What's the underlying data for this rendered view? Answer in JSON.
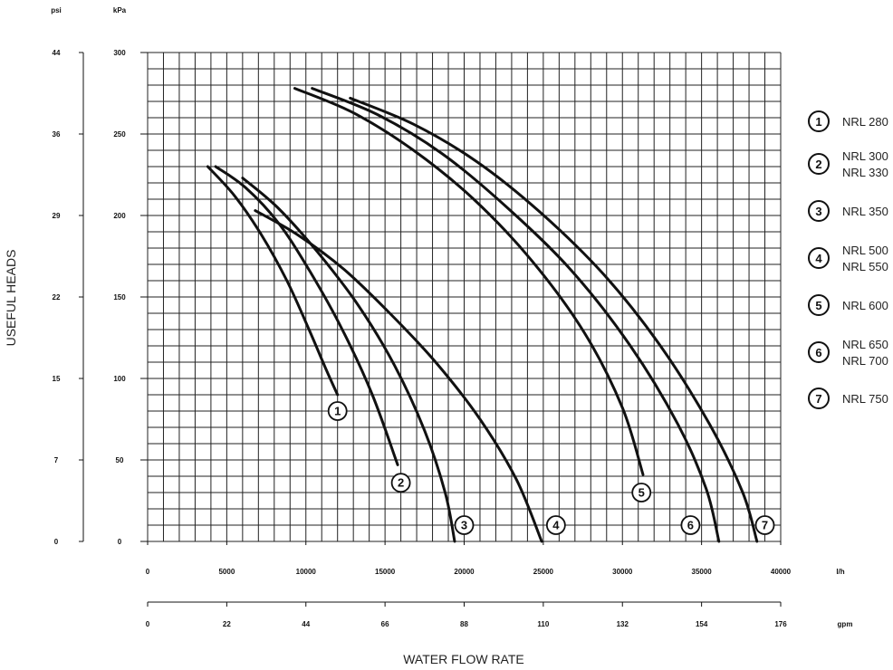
{
  "chart_data": {
    "type": "line",
    "title": "",
    "xlabel": "WATER FLOW RATE",
    "ylabel": "USEFUL HEADS",
    "x_primary": {
      "unit": "l/h",
      "range": [
        0,
        40000
      ],
      "ticks": [
        "0",
        "5000",
        "10000",
        "15000",
        "20000",
        "25000",
        "30000",
        "35000",
        "40000"
      ]
    },
    "x_secondary": {
      "unit": "gpm",
      "ticks": [
        "0",
        "22",
        "44",
        "66",
        "88",
        "110",
        "132",
        "154",
        "176"
      ]
    },
    "y_primary": {
      "unit": "kPa",
      "range": [
        0,
        300
      ],
      "ticks": [
        "0",
        "50",
        "100",
        "150",
        "200",
        "250",
        "300"
      ]
    },
    "y_secondary": {
      "unit": "psi",
      "ticks": [
        "0",
        "7",
        "15",
        "22",
        "29",
        "36",
        "44"
      ]
    },
    "grid": true,
    "legend_position": "right",
    "series": [
      {
        "id": "1",
        "badge": "1",
        "labels": [
          "NRL 280"
        ],
        "label_at": [
          12000,
          80
        ],
        "x": [
          3800,
          5500,
          7200,
          8800,
          10200,
          11300,
          12000
        ],
        "y": [
          230,
          212,
          188,
          160,
          130,
          105,
          90
        ]
      },
      {
        "id": "2",
        "badge": "2",
        "labels": [
          "NRL 300",
          "NRL 330"
        ],
        "label_at": [
          16000,
          36
        ],
        "x": [
          4300,
          6200,
          8300,
          10300,
          12300,
          14200,
          15800
        ],
        "y": [
          230,
          217,
          195,
          165,
          130,
          90,
          47
        ]
      },
      {
        "id": "3",
        "badge": "3",
        "labels": [
          "NRL 350"
        ],
        "label_at": [
          20000,
          10
        ],
        "x": [
          6000,
          8200,
          10700,
          13300,
          15600,
          17500,
          18800,
          19400
        ],
        "y": [
          223,
          205,
          178,
          145,
          108,
          68,
          30,
          0
        ]
      },
      {
        "id": "4",
        "badge": "4",
        "labels": [
          "NRL 500",
          "NRL 550"
        ],
        "label_at": [
          25800,
          10
        ],
        "x": [
          6800,
          9500,
          12400,
          15300,
          18200,
          21000,
          23300,
          24900
        ],
        "y": [
          203,
          188,
          167,
          140,
          110,
          75,
          38,
          0
        ]
      },
      {
        "id": "5",
        "badge": "5",
        "labels": [
          "NRL 600"
        ],
        "label_at": [
          31200,
          30
        ],
        "x": [
          9300,
          13000,
          16800,
          20600,
          24300,
          27600,
          30000,
          31300
        ],
        "y": [
          278,
          263,
          240,
          210,
          172,
          128,
          82,
          41
        ]
      },
      {
        "id": "6",
        "badge": "6",
        "labels": [
          "NRL 650",
          "NRL 700"
        ],
        "label_at": [
          34300,
          10
        ],
        "x": [
          10400,
          14500,
          18600,
          22700,
          26800,
          30500,
          33500,
          35300,
          36100
        ],
        "y": [
          278,
          262,
          238,
          205,
          166,
          120,
          72,
          32,
          0
        ]
      },
      {
        "id": "7",
        "badge": "7",
        "labels": [
          "NRL 750"
        ],
        "label_at": [
          39000,
          10
        ],
        "x": [
          12800,
          16800,
          20800,
          24800,
          28800,
          32400,
          35500,
          37600,
          38500
        ],
        "y": [
          272,
          256,
          233,
          202,
          164,
          120,
          72,
          30,
          0
        ]
      }
    ]
  }
}
